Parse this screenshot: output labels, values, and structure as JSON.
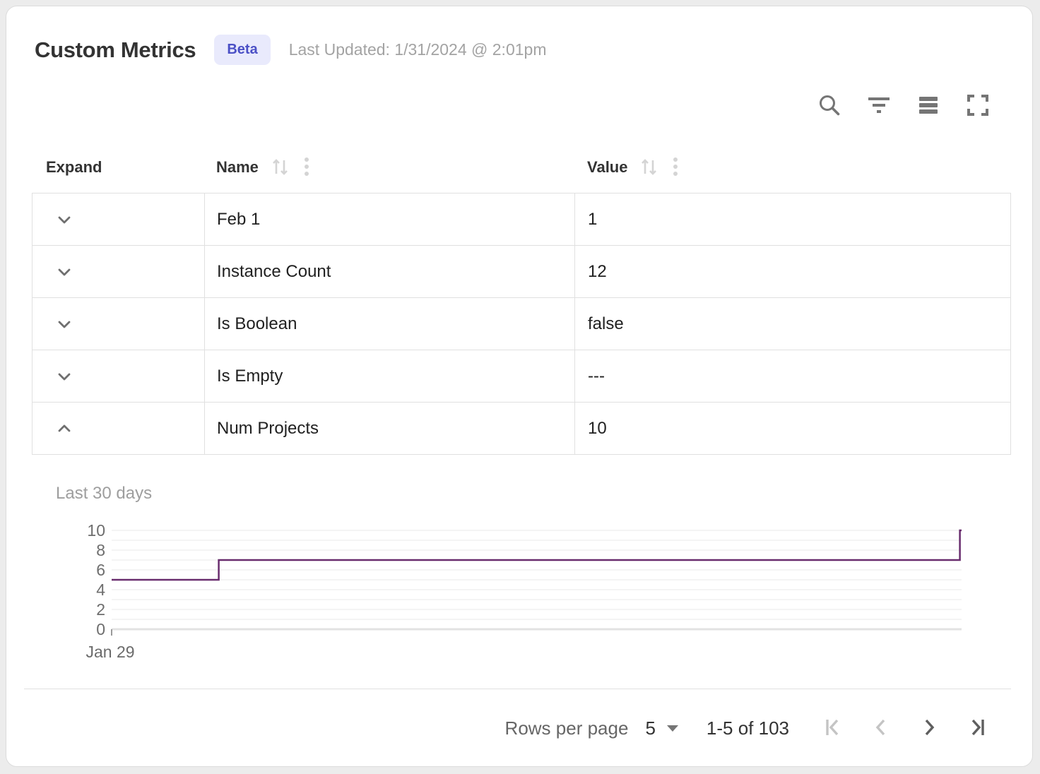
{
  "header": {
    "title": "Custom Metrics",
    "badge": "Beta",
    "last_updated": "Last Updated: 1/31/2024 @ 2:01pm"
  },
  "toolbar": {
    "icons": [
      "search",
      "filter",
      "density",
      "fullscreen"
    ]
  },
  "table": {
    "columns": {
      "expand": "Expand",
      "name": "Name",
      "value": "Value"
    },
    "rows": [
      {
        "name": "Feb 1",
        "value": "1",
        "expanded": false
      },
      {
        "name": "Instance Count",
        "value": "12",
        "expanded": false
      },
      {
        "name": "Is Boolean",
        "value": "false",
        "expanded": false
      },
      {
        "name": "Is Empty",
        "value": "---",
        "expanded": false
      },
      {
        "name": "Num Projects",
        "value": "10",
        "expanded": true
      }
    ]
  },
  "chart_data": {
    "type": "line",
    "subtype": "step",
    "title": "Last 30 days",
    "xlabel": "",
    "ylabel": "",
    "x_tick_labels": [
      "Jan 29"
    ],
    "y_ticks": [
      0,
      2,
      4,
      6,
      8,
      10
    ],
    "ylim": [
      0,
      10
    ],
    "y_grid_step": 1,
    "grid": true,
    "legend": false,
    "line_color": "#692d6e",
    "points_note": "step series as [x_fraction_of_30_days, value]",
    "points": [
      [
        0,
        5
      ],
      [
        0.126,
        5
      ],
      [
        0.126,
        7
      ],
      [
        0.998,
        7
      ],
      [
        0.998,
        10
      ],
      [
        1,
        10
      ]
    ]
  },
  "footer": {
    "rows_per_page_label": "Rows per page",
    "rows_per_page_value": "5",
    "rows_per_page_options_visible": [
      "5"
    ],
    "range_label": "1-5 of 103"
  },
  "colors": {
    "badge_bg": "#e9eafc",
    "badge_text": "#4b50c6",
    "chart_line": "#692d6e",
    "border": "#e0e0e0",
    "icon_gray": "#757575",
    "icon_light": "#d4d4d4",
    "pagination_disabled": "#c4c4c4",
    "pagination_enabled": "#5f5f5f"
  }
}
